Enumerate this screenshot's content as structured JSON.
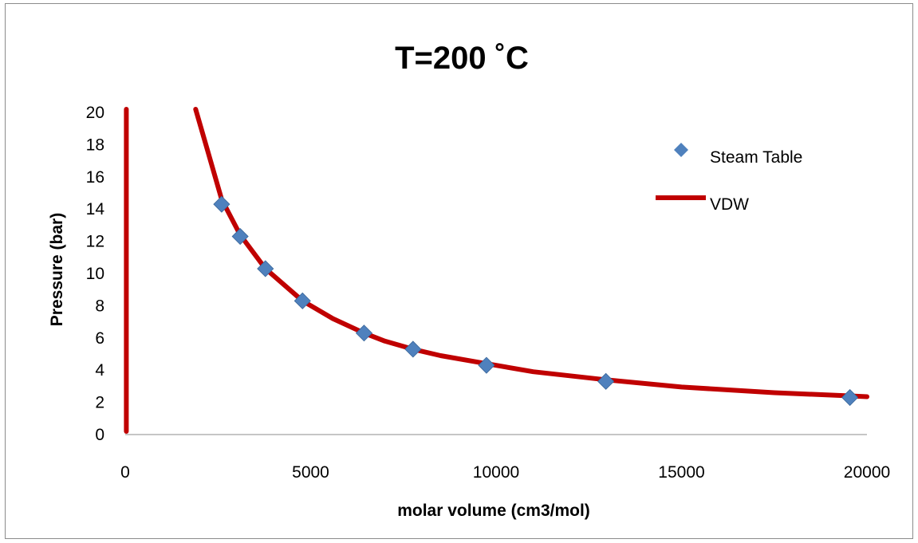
{
  "chart_data": {
    "type": "scatter",
    "title": "T=200 ˚C",
    "xlabel": "molar volume (cm3/mol)",
    "ylabel": "Pressure (bar)",
    "xlim": [
      0,
      20000
    ],
    "ylim": [
      0,
      20
    ],
    "x_ticks": [
      "0",
      "5000",
      "10000",
      "15000",
      "20000"
    ],
    "y_ticks": [
      "0",
      "2",
      "4",
      "6",
      "8",
      "10",
      "12",
      "14",
      "16",
      "18",
      "20"
    ],
    "grid": false,
    "legend_position": "top-right",
    "series": [
      {
        "name": "Steam Table",
        "type": "scatter",
        "marker": "diamond",
        "color": "#4f81bd",
        "x": [
          2600,
          3100,
          3780,
          4780,
          6440,
          7760,
          9740,
          12960,
          19540
        ],
        "y": [
          14.3,
          12.3,
          10.3,
          8.3,
          6.3,
          5.3,
          4.3,
          3.3,
          2.3
        ]
      },
      {
        "name": "VDW",
        "type": "line",
        "color": "#c00000",
        "x": [
          30,
          30,
          1900,
          2200,
          2600,
          3100,
          3780,
          4780,
          5600,
          6440,
          7000,
          7760,
          8500,
          9740,
          11000,
          12960,
          15000,
          17500,
          19540,
          20000
        ],
        "y": [
          20.2,
          0.2,
          20.2,
          17.8,
          14.6,
          12.4,
          10.3,
          8.3,
          7.2,
          6.3,
          5.8,
          5.3,
          4.9,
          4.4,
          3.9,
          3.4,
          2.95,
          2.6,
          2.4,
          2.35
        ]
      }
    ]
  }
}
